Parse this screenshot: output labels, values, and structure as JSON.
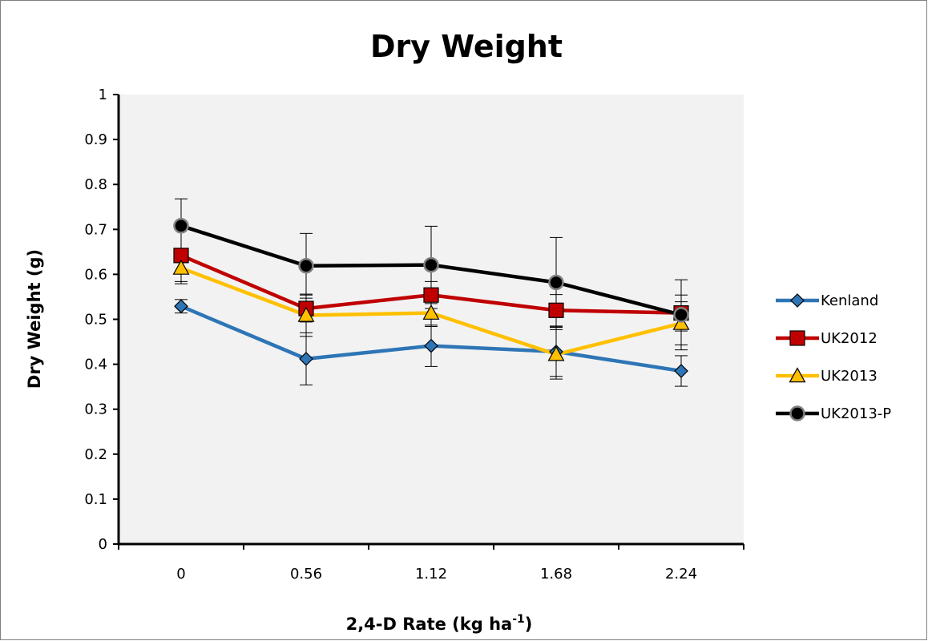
{
  "chart_data": {
    "type": "line",
    "title": "Dry Weight",
    "xlabel_main": "2,4-D Rate (kg ha",
    "xlabel_sup": "-1",
    "xlabel_tail": ")",
    "ylabel": "Dry Weight (g)",
    "categories": [
      "0",
      "0.56",
      "1.12",
      "1.68",
      "2.24"
    ],
    "ylim": [
      0,
      1
    ],
    "yticks": [
      "0",
      "0.1",
      "0.2",
      "0.3",
      "0.4",
      "0.5",
      "0.6",
      "0.7",
      "0.8",
      "0.9",
      "1"
    ],
    "grid": false,
    "legend_position": "right",
    "series": [
      {
        "name": "Kenland",
        "color": "#2e75b6",
        "marker": "diamond",
        "marker_fill": "#2e75b6",
        "values": [
          0.529,
          0.412,
          0.441,
          0.428,
          0.385
        ],
        "errors": [
          0.015,
          0.058,
          0.046,
          0.055,
          0.034
        ]
      },
      {
        "name": "UK2012",
        "color": "#c00000",
        "marker": "square",
        "marker_fill": "#c00000",
        "values": [
          0.642,
          0.524,
          0.554,
          0.52,
          0.514
        ],
        "errors": [
          0.063,
          0.03,
          0.03,
          0.035,
          0.04
        ]
      },
      {
        "name": "UK2013",
        "color": "#ffc000",
        "marker": "triangle",
        "marker_fill": "#ffc000",
        "values": [
          0.614,
          0.509,
          0.514,
          0.422,
          0.491
        ],
        "errors": [
          0.03,
          0.047,
          0.03,
          0.055,
          0.048
        ]
      },
      {
        "name": "UK2013-P",
        "color": "#000000",
        "marker": "circle",
        "marker_fill": "#000000",
        "values": [
          0.708,
          0.619,
          0.621,
          0.582,
          0.51
        ],
        "errors": [
          0.06,
          0.072,
          0.086,
          0.1,
          0.078
        ]
      }
    ]
  }
}
